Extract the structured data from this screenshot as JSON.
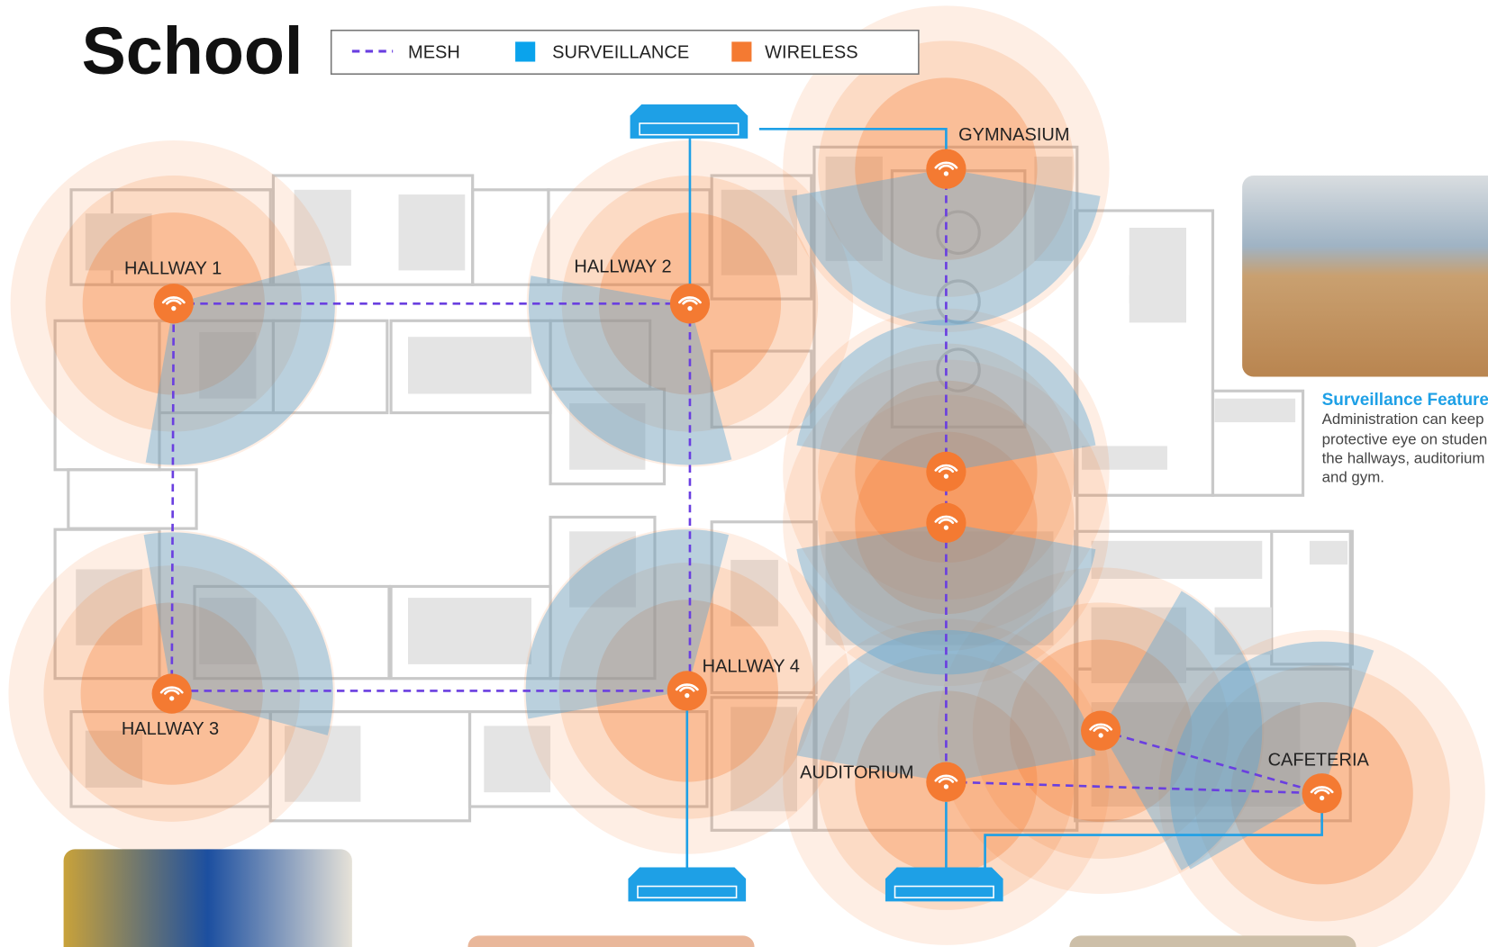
{
  "title": "School",
  "legend": [
    "MESH",
    "SURVEILLANCE",
    "WIRELESS"
  ],
  "labels": [
    "GYMNASIUM",
    "HALLWAY 1",
    "HALLWAY 2",
    "HALLWAY 3",
    "HALLWAY 4",
    "AUDITORIUM",
    "CAFETERIA"
  ],
  "sidebar": {
    "heading": "Surveillance Feature",
    "lines": [
      "Administration can keep",
      "protective eye on studen",
      "the hallways, auditorium",
      "and gym."
    ]
  }
}
